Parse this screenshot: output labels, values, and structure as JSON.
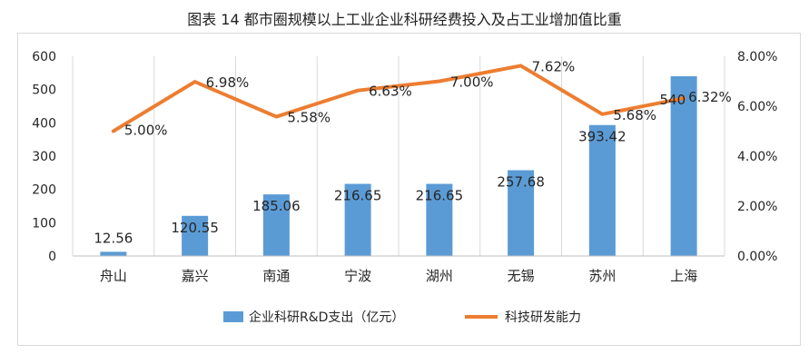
{
  "chart_data": {
    "type": "bar",
    "title": "图表 14 都市圈规模以上工业企业科研经费投入及占工业增加值比重",
    "categories": [
      "舟山",
      "嘉兴",
      "南通",
      "宁波",
      "湖州",
      "无锡",
      "苏州",
      "上海"
    ],
    "series": [
      {
        "name": "企业科研R&D支出（亿元）",
        "type": "bar",
        "axis": "left",
        "color": "#5b9bd5",
        "values": [
          12.56,
          120.55,
          185.06,
          216.65,
          216.65,
          257.68,
          393.42,
          540
        ],
        "labels": [
          "12.56",
          "120.55",
          "185.06",
          "216.65",
          "216.65",
          "257.68",
          "393.42",
          "540"
        ]
      },
      {
        "name": "科技研发能力",
        "type": "line",
        "axis": "right",
        "color": "#ed7d31",
        "values": [
          5.0,
          6.98,
          5.58,
          6.63,
          7.0,
          7.62,
          5.68,
          6.32
        ],
        "labels": [
          "5.00%",
          "6.98%",
          "5.58%",
          "6.63%",
          "7.00%",
          "7.62%",
          "5.68%",
          "6.32%"
        ]
      }
    ],
    "y_left": {
      "ylim": [
        0,
        600
      ],
      "ticks": [
        0,
        100,
        200,
        300,
        400,
        500,
        600
      ],
      "tick_labels": [
        "0",
        "100",
        "200",
        "300",
        "400",
        "500",
        "600"
      ]
    },
    "y_right": {
      "ylim": [
        0,
        8
      ],
      "ticks": [
        0,
        2,
        4,
        6,
        8
      ],
      "tick_labels": [
        "0.00%",
        "2.00%",
        "4.00%",
        "6.00%",
        "8.00%"
      ]
    },
    "grid": "vertical",
    "legend_position": "bottom"
  }
}
